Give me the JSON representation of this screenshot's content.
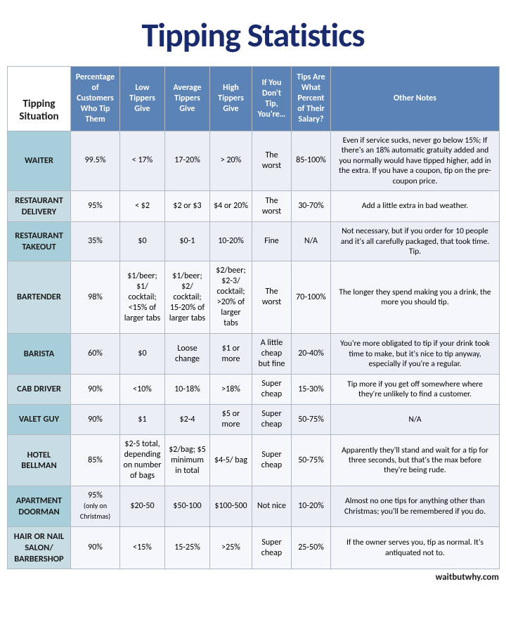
{
  "title": "Tipping Statistics",
  "source": "waitbutwhy.com",
  "columns": {
    "situation": "Tipping Situation",
    "pct": "Percentage of Customers Who Tip Them",
    "low": "Low Tippers Give",
    "avg": "Average Tippers Give",
    "high": "High Tippers Give",
    "ifnot": "If You Don't Tip, You're…",
    "salary": "Tips Are What Percent of Their Salary?",
    "notes": "Other Notes"
  },
  "col_widths": {
    "situation": 90,
    "pct": 70,
    "low": 64,
    "avg": 64,
    "high": 60,
    "ifnot": 56,
    "salary": 56,
    "notes": 240
  },
  "rows": [
    {
      "situation": "WAITER",
      "pct": "99.5%",
      "low": "< 17%",
      "avg": "17-20%",
      "high": "> 20%",
      "ifnot": "The worst",
      "salary": "85-100%",
      "notes": "Even if service sucks, never go below 15%; If there's an 18% automatic gratuity added and you normally would have tipped higher, add in the extra. If you have a coupon, tip on the pre-coupon price."
    },
    {
      "situation": "RESTAURANT DELIVERY",
      "pct": "95%",
      "low": "< $2",
      "avg": "$2 or $3",
      "high": "$4 or 20%",
      "ifnot": "The worst",
      "salary": "30-70%",
      "notes": "Add a little extra in bad weather."
    },
    {
      "situation": "RESTAURANT TAKEOUT",
      "pct": "35%",
      "low": "$0",
      "avg": "$0-1",
      "high": "10-20%",
      "ifnot": "Fine",
      "salary": "N/A",
      "notes": "Not necessary, but if you order for 10 people and it's all carefully packaged, that took time. Tip."
    },
    {
      "situation": "BARTENDER",
      "pct": "98%",
      "low": "$1/beer; $1/ cocktail; <15% of larger tabs",
      "avg": "$1/beer; $2/ cocktail; 15-20% of larger tabs",
      "high": "$2/beer; $2-3/ cocktail; >20% of larger tabs",
      "ifnot": "The worst",
      "salary": "70-100%",
      "notes": "The longer they spend making you a drink, the more you should tip."
    },
    {
      "situation": "BARISTA",
      "pct": "60%",
      "low": "$0",
      "avg": "Loose change",
      "high": "$1 or more",
      "ifnot": "A little cheap but fine",
      "salary": "20-40%",
      "notes": "You're more obligated to tip if your drink took time to make, but it's nice to tip anyway, especially if you're a regular."
    },
    {
      "situation": "CAB DRIVER",
      "pct": "90%",
      "low": "<10%",
      "avg": "10-18%",
      "high": ">18%",
      "ifnot": "Super cheap",
      "salary": "15-30%",
      "notes": "Tip more if you get off somewhere where they're unlikely to find a customer."
    },
    {
      "situation": "VALET GUY",
      "pct": "90%",
      "low": "$1",
      "avg": "$2-4",
      "high": "$5 or more",
      "ifnot": "Super cheap",
      "salary": "50-75%",
      "notes": "N/A"
    },
    {
      "situation": "HOTEL BELLMAN",
      "pct": "85%",
      "low": "$2-5 total, depending on number of bags",
      "avg": "$2/bag; $5 minimum in total",
      "high": "$4-5/ bag",
      "ifnot": "Super cheap",
      "salary": "50-75%",
      "notes": "Apparently they'll stand and wait for a tip for three seconds, but that's the max before they're being rude."
    },
    {
      "situation": "APARTMENT DOORMAN",
      "pct": "95% (only on Christmas)",
      "low": "$20-50",
      "avg": "$50-100",
      "high": "$100-500",
      "ifnot": "Not nice",
      "salary": "10-20%",
      "notes": "Almost no one tips for anything other than Christmas; you'll be remembered if you do."
    },
    {
      "situation": "HAIR OR NAIL SALON/ BARBERSHOP",
      "pct": "90%",
      "low": "<15%",
      "avg": "15-25%",
      "high": ">25%",
      "ifnot": "Super cheap",
      "salary": "25-50%",
      "notes": "If the owner serves you, tip as normal. It's antiquated not to."
    }
  ]
}
